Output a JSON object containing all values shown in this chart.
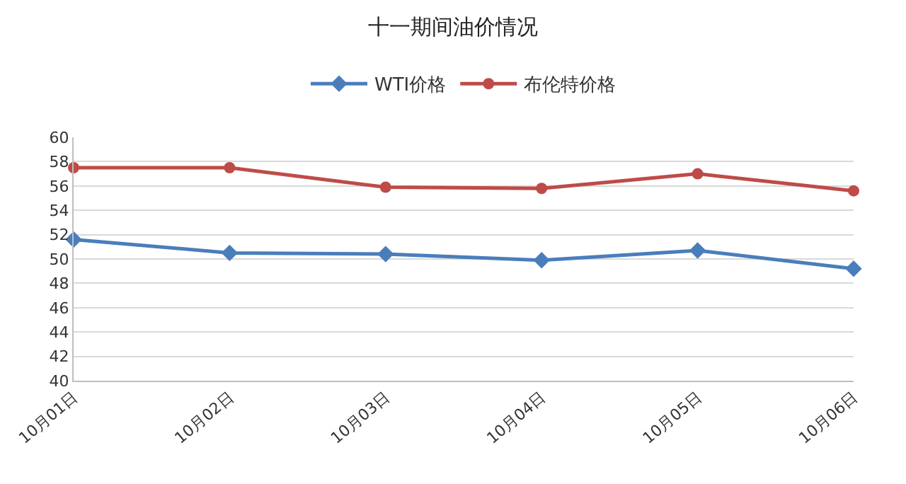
{
  "chart_data": {
    "type": "line",
    "title": "十一期间油价情况",
    "categories": [
      "10月01日",
      "10月02日",
      "10月03日",
      "10月04日",
      "10月05日",
      "10月06日"
    ],
    "series": [
      {
        "name": "WTI价格",
        "color": "#4a7ebb",
        "marker": "diamond",
        "values": [
          51.6,
          50.5,
          50.4,
          49.9,
          50.7,
          49.2
        ]
      },
      {
        "name": "布伦特价格",
        "color": "#be4b48",
        "marker": "circle",
        "values": [
          57.5,
          57.5,
          55.9,
          55.8,
          57.0,
          55.6
        ]
      }
    ],
    "ylim": [
      40,
      60
    ],
    "yticks": [
      40,
      42,
      44,
      46,
      48,
      50,
      52,
      54,
      56,
      58,
      60
    ],
    "grid": "y",
    "legend": "top",
    "line_style": "solid"
  }
}
